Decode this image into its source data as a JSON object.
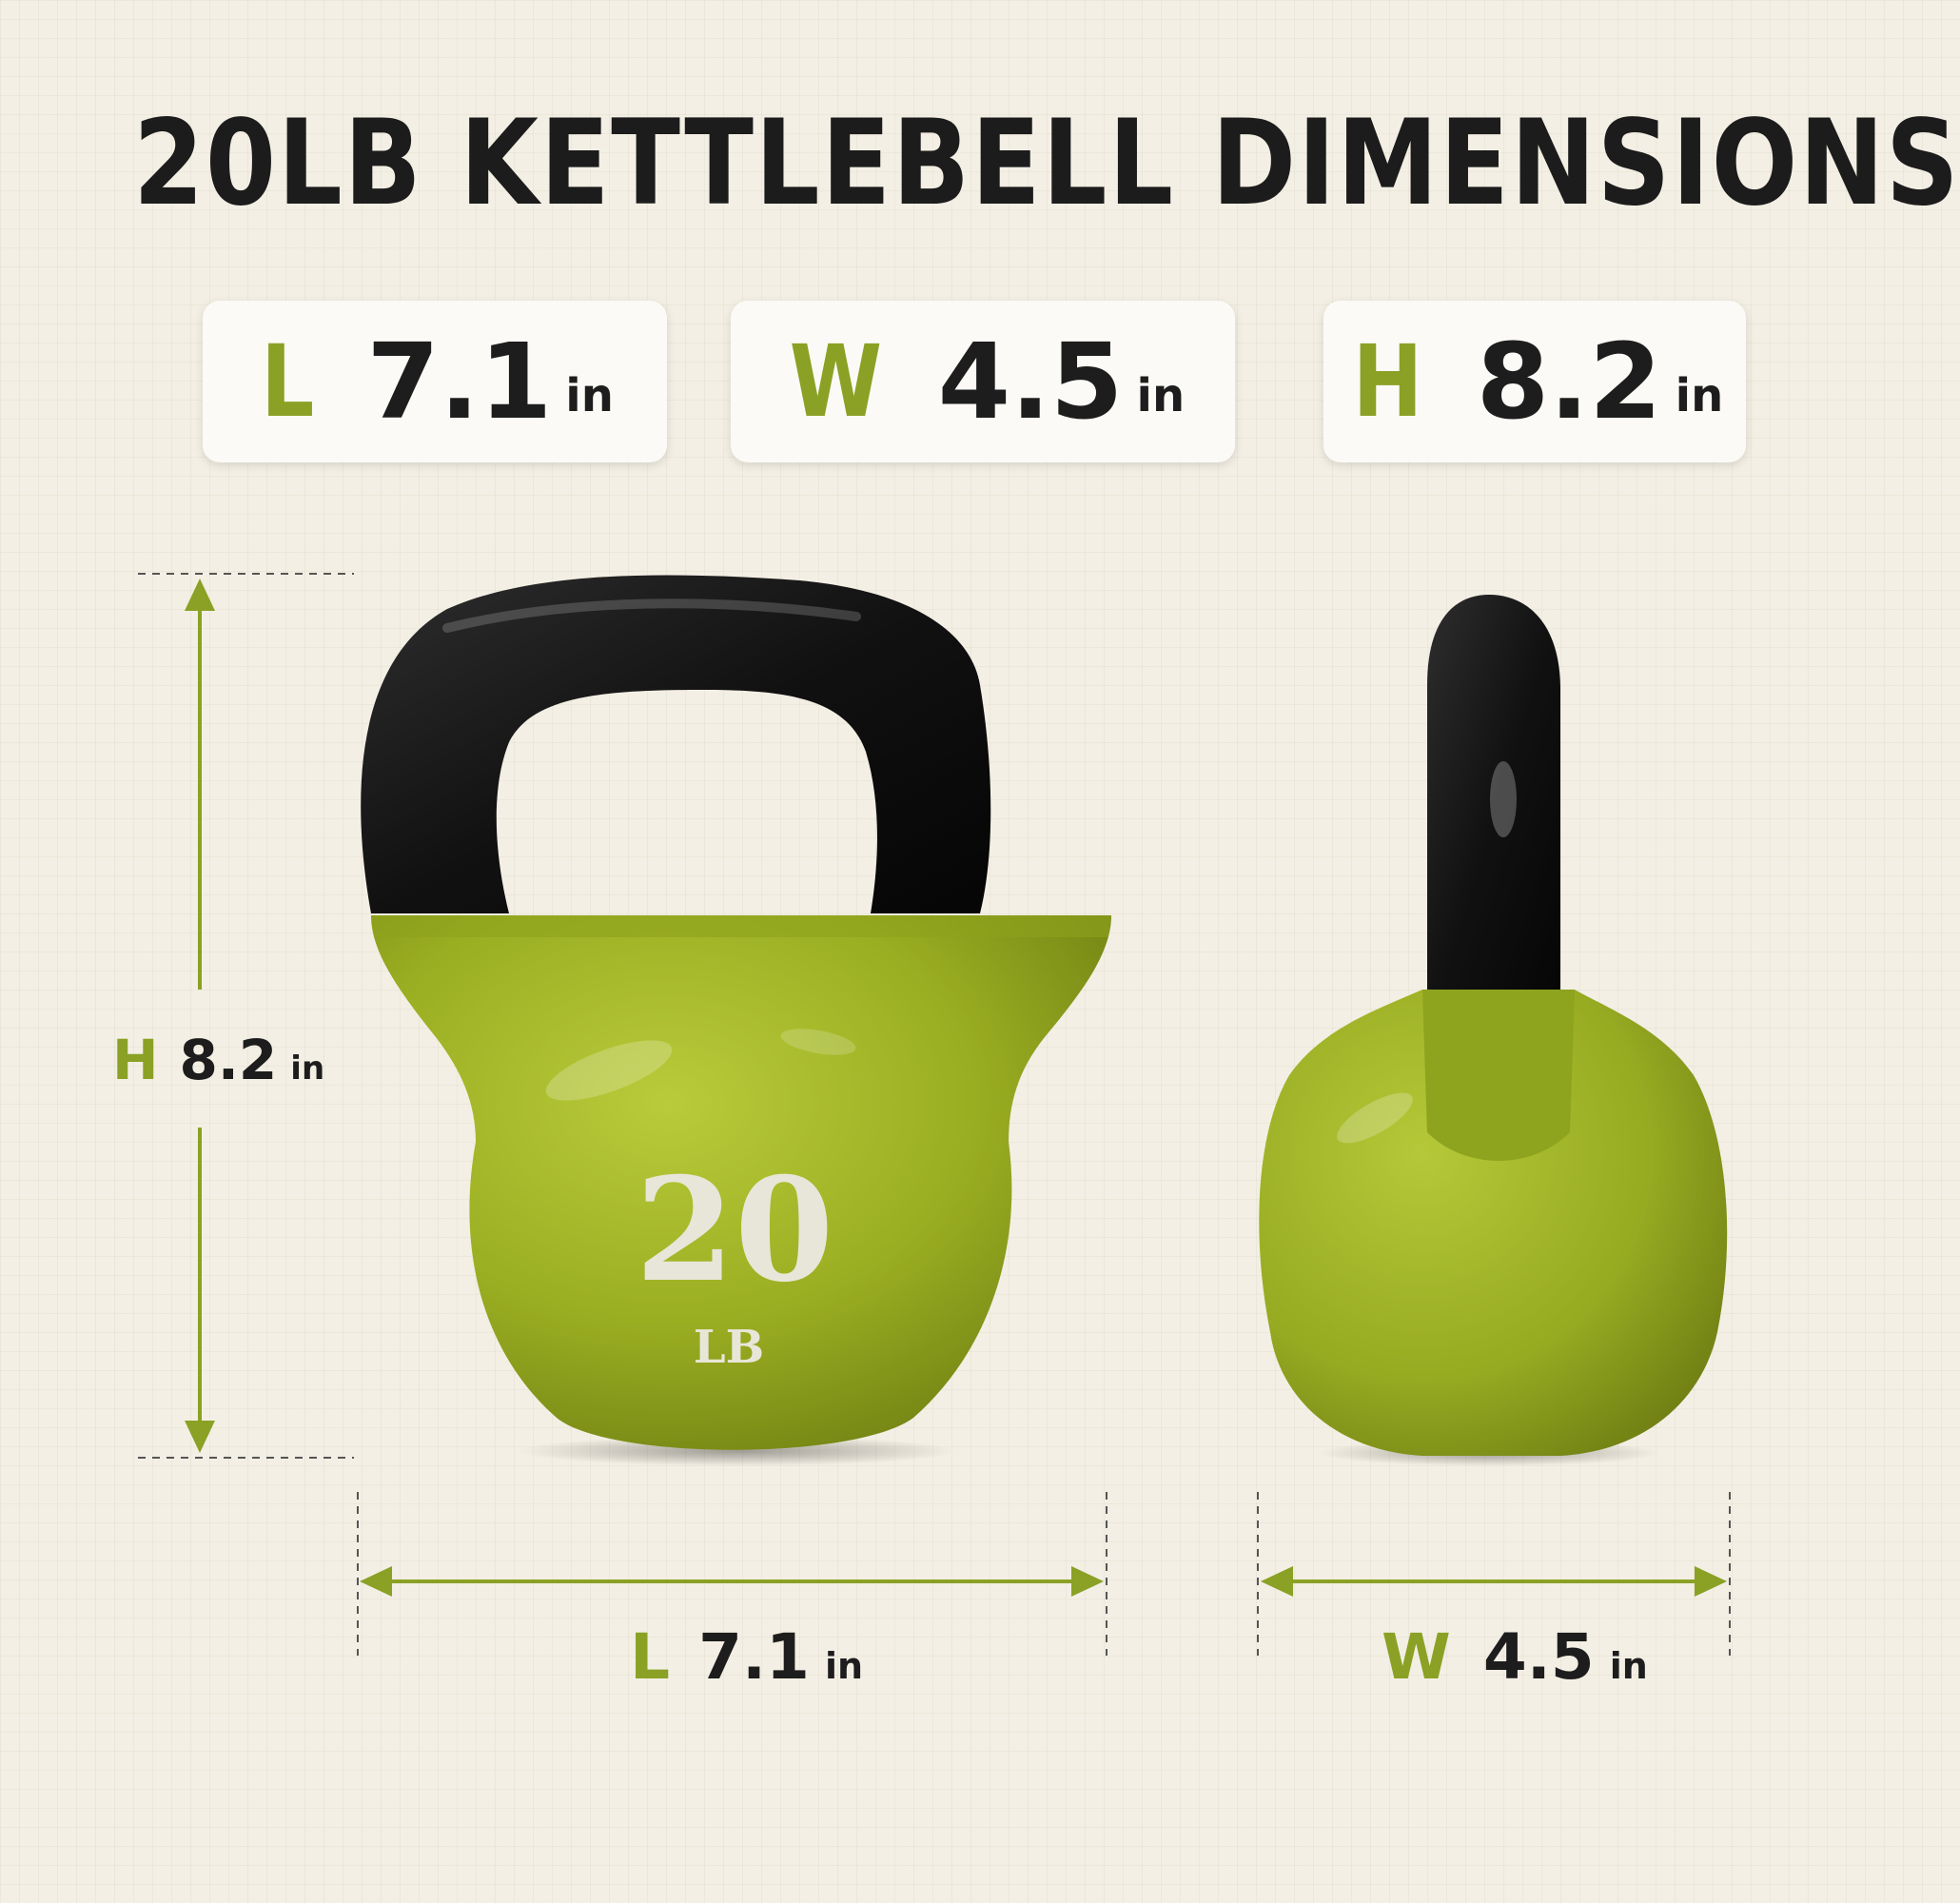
{
  "title": "20LB KETTLEBELL DIMENSIONS",
  "cards": [
    {
      "key": "L",
      "value": "7.1",
      "unit": "in"
    },
    {
      "key": "W",
      "value": "4.5",
      "unit": "in"
    },
    {
      "key": "H",
      "value": "8.2",
      "unit": "in"
    }
  ],
  "height_label": {
    "key": "H",
    "value": "8.2",
    "unit": "in"
  },
  "length_label": {
    "key": "L",
    "value": "7.1",
    "unit": "in"
  },
  "width_label": {
    "key": "W",
    "value": "4.5",
    "unit": "in"
  },
  "kettlebell": {
    "weight": "20",
    "weight_unit": "LB"
  },
  "colors": {
    "accent": "#8aa125",
    "bell": "#9aaf25",
    "handle": "#151515",
    "text": "#1d1d1d"
  }
}
